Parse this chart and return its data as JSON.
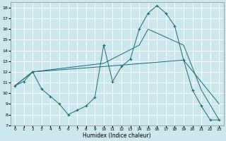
{
  "xlabel": "Humidex (Indice chaleur)",
  "bg_color": "#cce8ee",
  "grid_color": "#ffffff",
  "line_color": "#1a6b6b",
  "x_min": -0.5,
  "x_max": 23.5,
  "y_min": 7,
  "y_max": 18,
  "line1_x": [
    0,
    1,
    2,
    3,
    4,
    5,
    6,
    7,
    8,
    9,
    10,
    11,
    12,
    13,
    14,
    15,
    16,
    17,
    18,
    19,
    20,
    21,
    22,
    23
  ],
  "line1_y": [
    10.7,
    11.1,
    12.0,
    10.4,
    9.7,
    9.0,
    8.0,
    8.4,
    8.8,
    9.6,
    14.5,
    11.1,
    12.5,
    13.2,
    16.0,
    17.5,
    18.2,
    17.5,
    16.3,
    13.1,
    10.3,
    8.8,
    7.5,
    7.5
  ],
  "line2_x": [
    0,
    2,
    10,
    19,
    23
  ],
  "line2_y": [
    10.7,
    12.0,
    12.5,
    13.1,
    9.0
  ],
  "line3_x": [
    0,
    2,
    10,
    14,
    15,
    19,
    21,
    23
  ],
  "line3_y": [
    10.7,
    12.0,
    12.8,
    14.5,
    16.0,
    14.5,
    10.3,
    7.5
  ]
}
